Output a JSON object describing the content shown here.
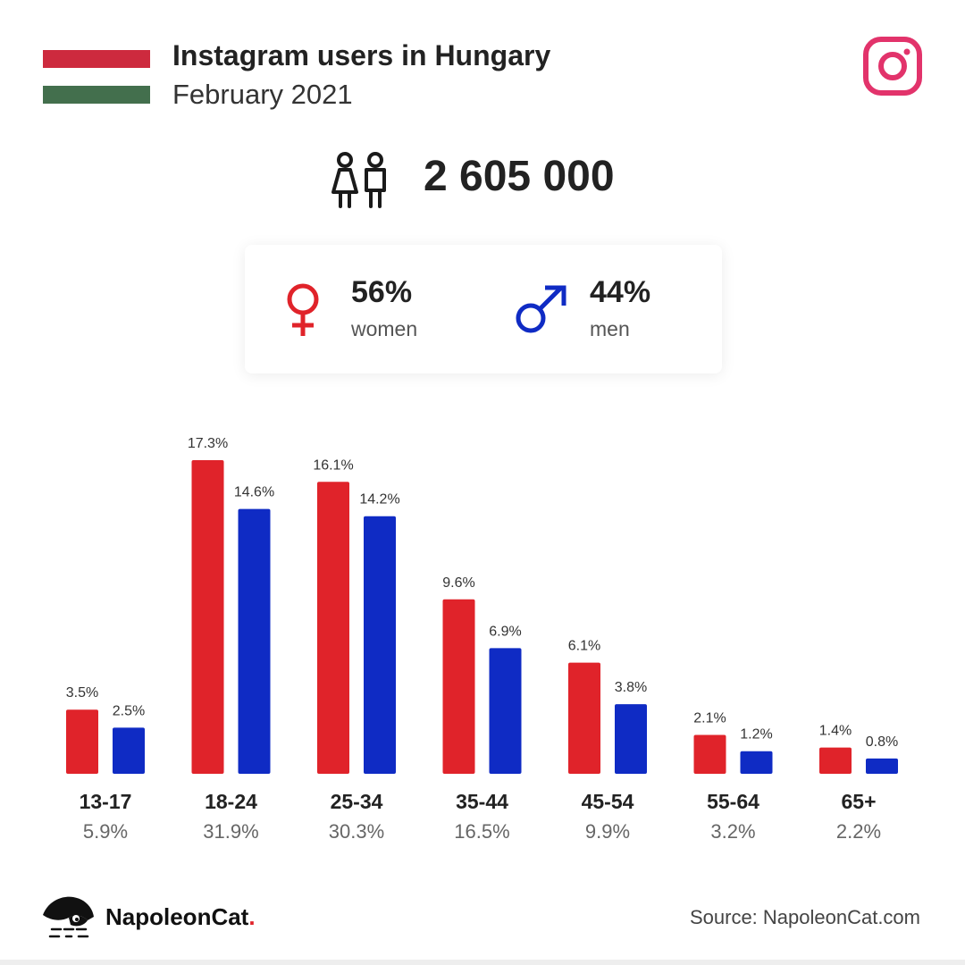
{
  "header": {
    "title": "Instagram users in Hungary",
    "subtitle": "February 2021"
  },
  "flag_colors": [
    "#cd2a3e",
    "#ffffff",
    "#436f4d"
  ],
  "icons": {
    "brand": "instagram-icon",
    "users": "people-icon",
    "women": "female-symbol-icon",
    "men": "male-symbol-icon",
    "logo": "napoleoncat-logo"
  },
  "summary": {
    "total_users": "2 605 000",
    "women_pct": "56%",
    "women_label": "women",
    "men_pct": "44%",
    "men_label": "men"
  },
  "colors": {
    "women": "#e0232a",
    "men": "#0f2bc4",
    "instagram": "#e2336b"
  },
  "chart_data": {
    "type": "bar",
    "categories": [
      "13-17",
      "18-24",
      "25-34",
      "35-44",
      "45-54",
      "55-64",
      "65+"
    ],
    "category_totals": [
      "5.9%",
      "31.9%",
      "30.3%",
      "16.5%",
      "9.9%",
      "3.2%",
      "2.2%"
    ],
    "series": [
      {
        "name": "women",
        "values": [
          3.5,
          17.3,
          16.1,
          9.6,
          6.1,
          2.1,
          1.4
        ],
        "labels": [
          "3.5%",
          "17.3%",
          "16.1%",
          "9.6%",
          "6.1%",
          "2.1%",
          "1.4%"
        ],
        "color": "#e0232a"
      },
      {
        "name": "men",
        "values": [
          2.5,
          14.6,
          14.2,
          6.9,
          3.8,
          1.2,
          0.8
        ],
        "labels": [
          "2.5%",
          "14.6%",
          "14.2%",
          "6.9%",
          "3.8%",
          "1.2%",
          "0.8%"
        ],
        "color": "#0f2bc4"
      }
    ],
    "ylim": [
      0,
      17.3
    ],
    "grid": false
  },
  "footer": {
    "brand_name": "NapoleonCat",
    "brand_dot": ".",
    "source": "Source: NapoleonCat.com"
  }
}
